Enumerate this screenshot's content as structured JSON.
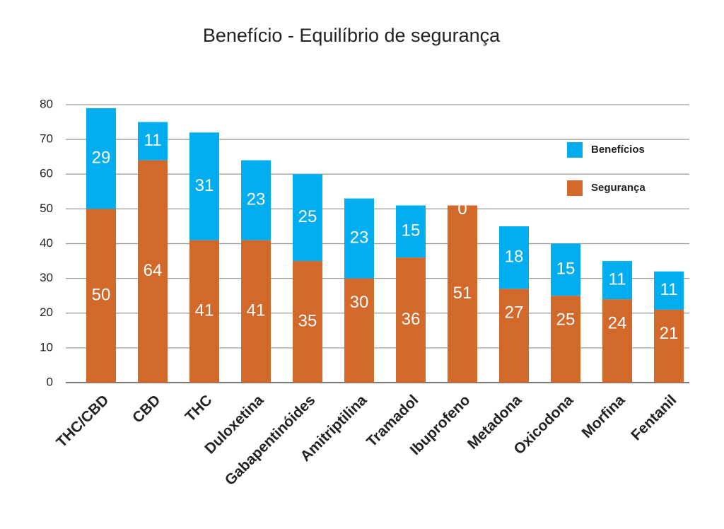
{
  "chart_data": {
    "type": "stacked_bar",
    "title": "Benefício - Equilíbrio de segurança",
    "categories": [
      "THC/CBD",
      "CBD",
      "THC",
      "Duloxetina",
      "Gabapentinóides",
      "Amitriptilina",
      "Tramadol",
      "Ibuprofeno",
      "Metadona",
      "Oxicodona",
      "Morfina",
      "Fentanil"
    ],
    "series": [
      {
        "name": "Segurança",
        "color": "#d2692a",
        "values": [
          50,
          64,
          41,
          41,
          35,
          30,
          36,
          51,
          27,
          25,
          24,
          21
        ]
      },
      {
        "name": "Benefícios",
        "color": "#00aeef",
        "values": [
          29,
          11,
          31,
          23,
          25,
          23,
          15,
          0,
          18,
          15,
          11,
          11
        ]
      }
    ],
    "ylim": [
      0,
      80
    ],
    "yticks": [
      0,
      10,
      20,
      30,
      40,
      50,
      60,
      70,
      80
    ],
    "grid": true,
    "legend": "upper right"
  }
}
